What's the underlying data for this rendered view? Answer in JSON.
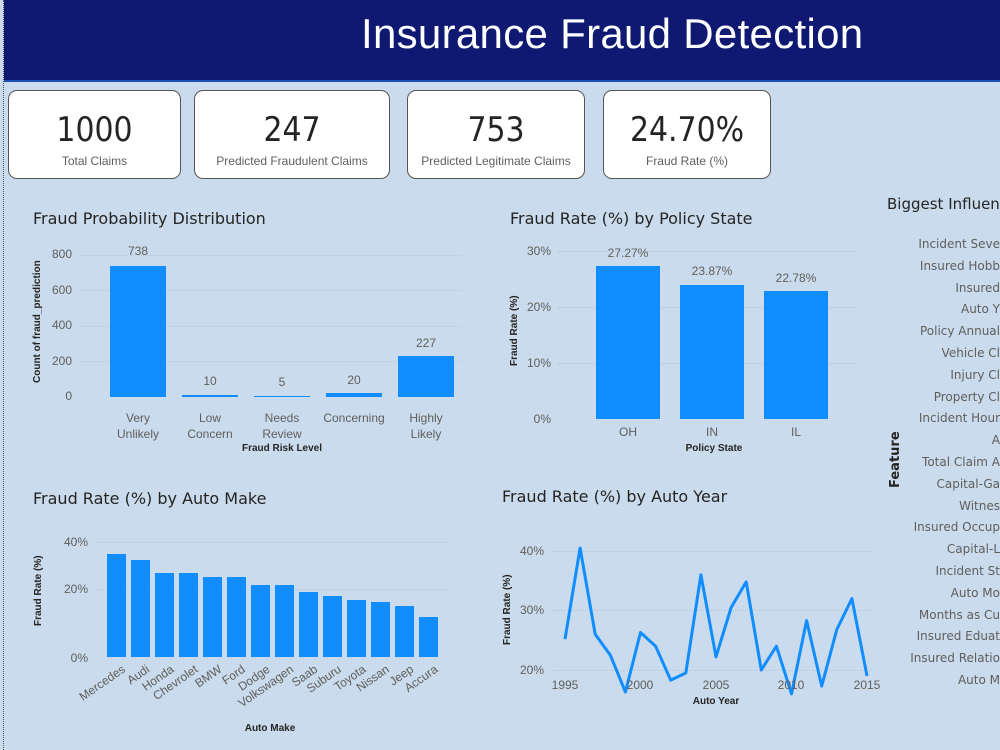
{
  "header": {
    "title": "Insurance Fraud Detection"
  },
  "kpis": [
    {
      "value": "1000",
      "label": "Total Claims"
    },
    {
      "value": "247",
      "label": "Predicted Fraudulent Claims"
    },
    {
      "value": "753",
      "label": "Predicted Legitimate Claims"
    },
    {
      "value": "24.70%",
      "label": "Fraud Rate (%)"
    }
  ],
  "influencers": {
    "title": "Biggest Influen",
    "axis_label": "Feature",
    "features": [
      "Incident Seve",
      "Insured Hobb",
      "Insured",
      "Auto Y",
      "Policy Annual",
      "Vehicle Cl",
      "Injury Cl",
      "Property Cl",
      "Incident Hour",
      "A",
      "Total Claim A",
      "Capital-Ga",
      "Witnes",
      "Insured Occup",
      "Capital-L",
      "Incident St",
      "Auto Mo",
      "Months as Cu",
      "Insured Eduat",
      "Insured Relatio",
      "Auto M"
    ]
  },
  "colors": {
    "bar": "#118dff",
    "header": "#0f1972",
    "background": "#c9dbec"
  },
  "chart_data": [
    {
      "type": "bar",
      "title": "Fraud Probability Distribution",
      "categories": [
        "Very Unlikely",
        "Low Concern",
        "Needs Review",
        "Concerning",
        "Highly Likely"
      ],
      "category_lines": [
        [
          "Very",
          "Unlikely"
        ],
        [
          "Low",
          "Concern"
        ],
        [
          "Needs",
          "Review"
        ],
        [
          "Concerning",
          ""
        ],
        [
          "Highly",
          "Likely"
        ]
      ],
      "values": [
        738,
        10,
        5,
        20,
        227
      ],
      "data_labels": [
        "738",
        "10",
        "5",
        "20",
        "227"
      ],
      "xlabel": "Fraud Risk Level",
      "ylabel": "Count of fraud_prediction",
      "yticks": [
        "800",
        "600",
        "400",
        "200",
        "0"
      ],
      "ylim": [
        0,
        800
      ],
      "grid": true
    },
    {
      "type": "bar",
      "title": "Fraud Rate (%) by Policy State",
      "categories": [
        "OH",
        "IN",
        "IL"
      ],
      "values": [
        27.27,
        23.87,
        22.78
      ],
      "data_labels": [
        "27.27%",
        "23.87%",
        "22.78%"
      ],
      "xlabel": "Policy State",
      "ylabel": "Fraud Rate (%)",
      "yticks": [
        "30%",
        "20%",
        "10%",
        "0%"
      ],
      "ylim": [
        0,
        30
      ],
      "grid": true
    },
    {
      "type": "bar",
      "title": "Fraud Rate (%) by Auto Make",
      "categories": [
        "Mercedes",
        "Audi",
        "Honda",
        "Chevrolet",
        "BMW",
        "Ford",
        "Dodge",
        "Volkswagen",
        "Saab",
        "Suburu",
        "Toyota",
        "Nissan",
        "Jeep",
        "Accura"
      ],
      "values": [
        35.4,
        33.3,
        29.0,
        28.9,
        27.8,
        27.8,
        25.0,
        25.0,
        22.5,
        21.3,
        20.0,
        19.3,
        17.9,
        14.7
      ],
      "xlabel": "Auto Make",
      "ylabel": "Fraud Rate (%)",
      "yticks": [
        "40%",
        "20%",
        "0%"
      ],
      "ylim": [
        0,
        40
      ],
      "grid": true
    },
    {
      "type": "line",
      "title": "Fraud Rate (%) by Auto Year",
      "x": [
        1995,
        1996,
        1997,
        1998,
        1999,
        2000,
        2001,
        2002,
        2003,
        2004,
        2005,
        2006,
        2007,
        2008,
        2009,
        2010,
        2011,
        2012,
        2013,
        2014,
        2015
      ],
      "values": [
        25.2,
        40.5,
        26.0,
        22.5,
        16.3,
        26.3,
        24.0,
        18.3,
        19.5,
        36.0,
        22.2,
        30.5,
        34.8,
        20.0,
        24.0,
        16.0,
        28.3,
        17.3,
        26.8,
        32.0,
        19.0
      ],
      "xlabel": "Auto Year",
      "ylabel": "Fraud Rate (%)",
      "xticks": [
        "1995",
        "2000",
        "2005",
        "2010",
        "2015"
      ],
      "yticks": [
        "40%",
        "30%",
        "20%"
      ],
      "ylim": [
        14,
        42
      ],
      "grid": true
    }
  ]
}
